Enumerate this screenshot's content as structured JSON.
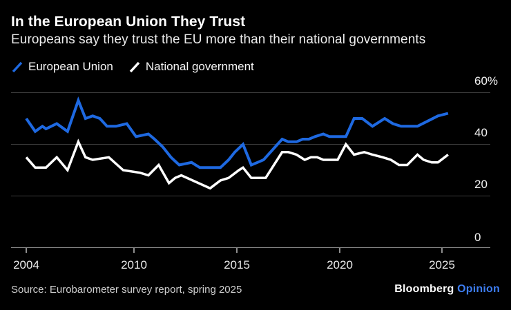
{
  "header": {
    "title": "In the European Union They Trust",
    "subtitle": "Europeans say they trust the EU more than their national governments"
  },
  "legend": [
    {
      "label": "European Union",
      "color": "#1e69e1"
    },
    {
      "label": "National government",
      "color": "#ffffff"
    }
  ],
  "footer": {
    "source": "Source: Eurobarometer survey report, spring 2025",
    "brand": "Bloomberg",
    "brand_suffix": "Opinion",
    "brand_suffix_color": "#3d7df2"
  },
  "chart_data": {
    "type": "line",
    "title": "In the European Union They Trust",
    "subtitle": "Europeans say they trust the EU more than their national governments",
    "unit": "%",
    "grid": "horizontal",
    "legend_position": "top-left",
    "xlim": [
      2004,
      2025.5
    ],
    "ylim": [
      0,
      60
    ],
    "x_ticks": [
      2004,
      2010,
      2015,
      2020,
      2025
    ],
    "x_tick_labels": [
      "2004",
      "2010",
      "2015",
      "2020",
      "2025"
    ],
    "y_ticks": [
      60,
      40,
      20,
      0
    ],
    "y_tick_labels": [
      "60%",
      "40",
      "20",
      "0"
    ],
    "series": [
      {
        "name": "European Union",
        "color": "#1e69e1",
        "points": [
          [
            2004.0,
            50
          ],
          [
            2004.5,
            45
          ],
          [
            2004.9,
            47
          ],
          [
            2005.1,
            46
          ],
          [
            2005.7,
            48
          ],
          [
            2006.3,
            45
          ],
          [
            2006.9,
            57
          ],
          [
            2007.3,
            50
          ],
          [
            2007.7,
            51
          ],
          [
            2008.1,
            50
          ],
          [
            2008.5,
            47
          ],
          [
            2009.0,
            47
          ],
          [
            2009.6,
            48
          ],
          [
            2010.1,
            43
          ],
          [
            2010.7,
            44
          ],
          [
            2011.0,
            42
          ],
          [
            2011.4,
            39
          ],
          [
            2011.8,
            35
          ],
          [
            2012.2,
            32
          ],
          [
            2012.8,
            33
          ],
          [
            2013.2,
            31
          ],
          [
            2014.2,
            31
          ],
          [
            2014.6,
            34
          ],
          [
            2014.9,
            37
          ],
          [
            2015.3,
            40
          ],
          [
            2015.7,
            32
          ],
          [
            2016.0,
            33
          ],
          [
            2016.3,
            34
          ],
          [
            2017.2,
            42
          ],
          [
            2017.5,
            41
          ],
          [
            2017.9,
            41
          ],
          [
            2018.2,
            42
          ],
          [
            2018.5,
            42
          ],
          [
            2018.8,
            43
          ],
          [
            2019.2,
            44
          ],
          [
            2019.5,
            43
          ],
          [
            2019.9,
            43
          ],
          [
            2020.3,
            43
          ],
          [
            2020.7,
            50
          ],
          [
            2021.1,
            50
          ],
          [
            2021.6,
            47
          ],
          [
            2022.2,
            50
          ],
          [
            2022.6,
            48
          ],
          [
            2023.0,
            47
          ],
          [
            2023.4,
            47
          ],
          [
            2023.8,
            47
          ],
          [
            2024.3,
            49
          ],
          [
            2024.8,
            51
          ],
          [
            2025.3,
            52
          ]
        ]
      },
      {
        "name": "National government",
        "color": "#ffffff",
        "points": [
          [
            2004.0,
            35
          ],
          [
            2004.5,
            31
          ],
          [
            2005.1,
            31
          ],
          [
            2005.7,
            35
          ],
          [
            2006.3,
            30
          ],
          [
            2006.9,
            41
          ],
          [
            2007.3,
            35
          ],
          [
            2007.7,
            34
          ],
          [
            2008.6,
            35
          ],
          [
            2009.4,
            30
          ],
          [
            2010.3,
            29
          ],
          [
            2010.7,
            28
          ],
          [
            2011.2,
            32
          ],
          [
            2011.7,
            25
          ],
          [
            2012.0,
            27
          ],
          [
            2012.3,
            28
          ],
          [
            2013.7,
            23
          ],
          [
            2014.2,
            26
          ],
          [
            2014.6,
            27
          ],
          [
            2015.1,
            30
          ],
          [
            2015.3,
            31
          ],
          [
            2015.7,
            27
          ],
          [
            2016.0,
            27
          ],
          [
            2016.4,
            27
          ],
          [
            2017.2,
            37
          ],
          [
            2017.5,
            37
          ],
          [
            2017.9,
            36
          ],
          [
            2018.3,
            34
          ],
          [
            2018.6,
            35
          ],
          [
            2018.9,
            35
          ],
          [
            2019.2,
            34
          ],
          [
            2019.5,
            34
          ],
          [
            2019.9,
            34
          ],
          [
            2020.3,
            40
          ],
          [
            2020.7,
            36
          ],
          [
            2021.2,
            37
          ],
          [
            2021.6,
            36
          ],
          [
            2022.1,
            35
          ],
          [
            2022.5,
            34
          ],
          [
            2022.9,
            32
          ],
          [
            2023.3,
            32
          ],
          [
            2023.8,
            36
          ],
          [
            2024.1,
            34
          ],
          [
            2024.5,
            33
          ],
          [
            2024.8,
            33
          ],
          [
            2025.3,
            36
          ]
        ]
      }
    ]
  }
}
